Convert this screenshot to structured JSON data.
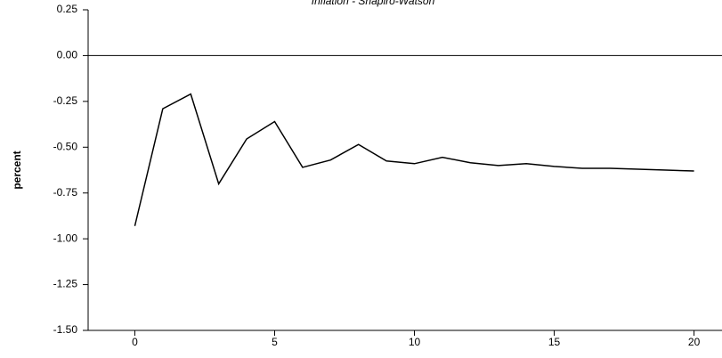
{
  "chart_data": {
    "type": "line",
    "title": "Inflation - Shapiro-Watson",
    "ylabel": "percent",
    "x": [
      0,
      1,
      2,
      3,
      4,
      5,
      6,
      7,
      8,
      9,
      10,
      11,
      12,
      13,
      14,
      15,
      16,
      17,
      18,
      19,
      20
    ],
    "series": [
      {
        "color": "#000000",
        "values": [
          -0.93,
          -0.29,
          -0.21,
          -0.7,
          -0.455,
          -0.36,
          -0.61,
          -0.57,
          -0.485,
          -0.575,
          -0.59,
          -0.555,
          -0.585,
          -0.6,
          -0.59,
          -0.605,
          -0.615,
          -0.615,
          -0.62,
          -0.625,
          -0.63
        ]
      }
    ],
    "xlim": [
      -1.67,
      21.0
    ],
    "xticks": [
      0,
      5,
      10,
      15,
      20
    ],
    "ylim": [
      -1.5,
      0.25
    ],
    "yticks": [
      0.25,
      {
        "value": 0,
        "label": "0.00"
      },
      -0.25,
      {
        "value": -0.5,
        "label": "-0.50"
      },
      -0.75,
      {
        "value": -1,
        "label": "-1.00"
      },
      -1.25,
      {
        "value": -1.5,
        "label": "-1.50"
      }
    ]
  }
}
